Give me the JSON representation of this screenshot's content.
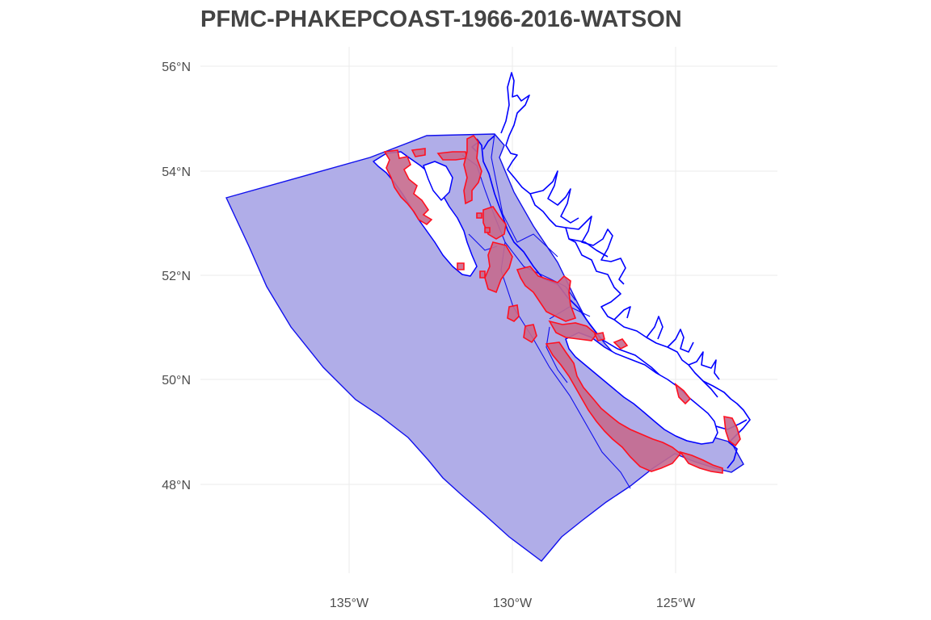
{
  "title": "PFMC-PHAKEPCOAST-1966-2016-WATSON",
  "axes": {
    "latitude_ticks": [
      {
        "label": "56°N",
        "value": 56
      },
      {
        "label": "54°N",
        "value": 54
      },
      {
        "label": "52°N",
        "value": 52
      },
      {
        "label": "50°N",
        "value": 50
      },
      {
        "label": "48°N",
        "value": 48
      }
    ],
    "longitude_ticks": [
      {
        "label": "135°W",
        "value": -135
      },
      {
        "label": "130°W",
        "value": -130
      },
      {
        "label": "125°W",
        "value": -125
      }
    ]
  },
  "layers": {
    "region_fill": "#b0ade8",
    "region_stroke": "#1010ee",
    "coastline_color": "#0000ff",
    "sample_area_fill": "#c56a8e",
    "sample_area_stroke": "#ff1020",
    "grid_color": "#ebebeb"
  }
}
